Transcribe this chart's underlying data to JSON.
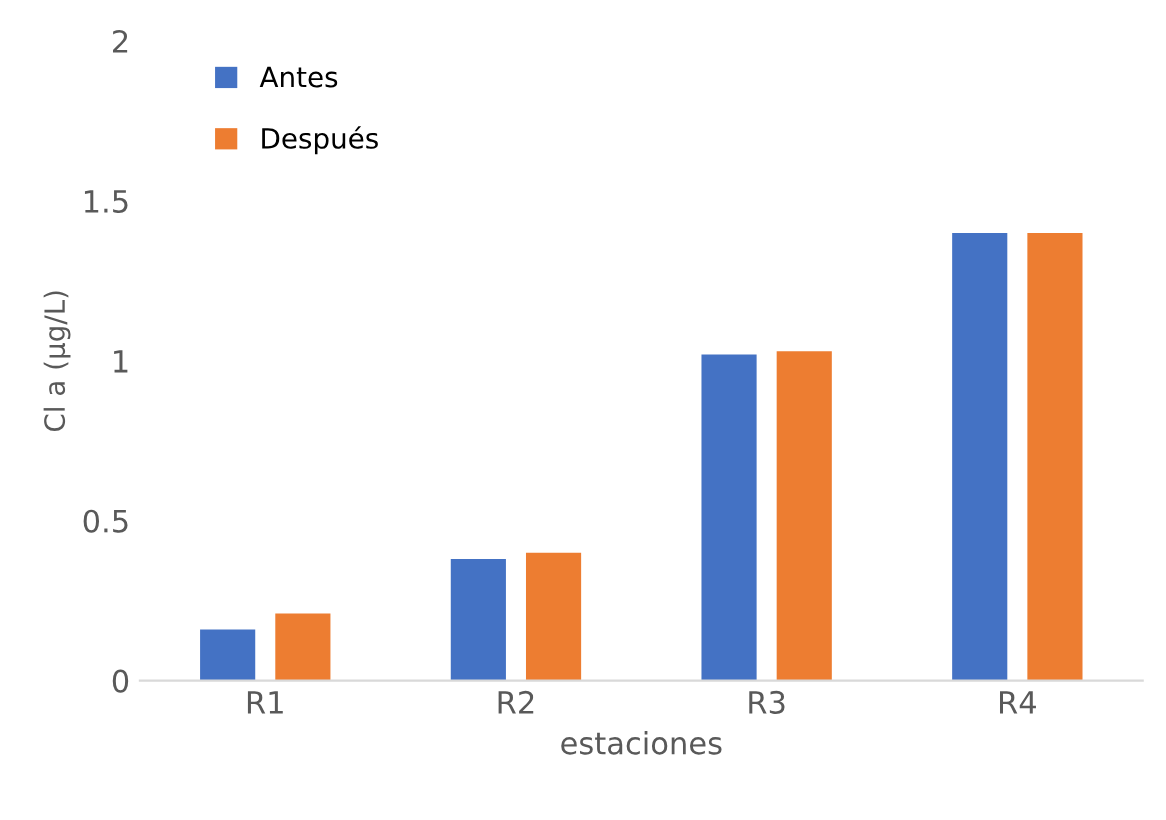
{
  "chart_data": {
    "type": "bar",
    "xlabel": "estaciones",
    "ylabel": "Cl a (µg/L)",
    "categories": [
      "R1",
      "R2",
      "R3",
      "R4"
    ],
    "series": [
      {
        "name": "Antes",
        "color": "#4472c4",
        "values": [
          0.16,
          0.38,
          1.02,
          1.4
        ]
      },
      {
        "name": "Después",
        "color": "#ed7d31",
        "values": [
          0.21,
          0.4,
          1.03,
          1.4
        ]
      }
    ],
    "ylim": [
      0,
      2
    ],
    "yticks": [
      0,
      0.5,
      1,
      1.5,
      2
    ],
    "grid": false,
    "legend": "top left"
  }
}
